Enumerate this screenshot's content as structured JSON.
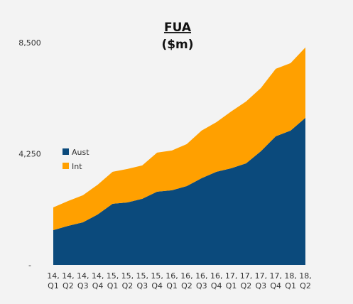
{
  "chart_data": {
    "type": "stacked_area",
    "title": "FUA",
    "subtitle": "($m)",
    "categories": [
      [
        "14,",
        "Q1"
      ],
      [
        "14,",
        "Q2"
      ],
      [
        "14,",
        "Q3"
      ],
      [
        "14,",
        "Q4"
      ],
      [
        "15,",
        "Q1"
      ],
      [
        "15,",
        "Q2"
      ],
      [
        "15,",
        "Q3"
      ],
      [
        "15,",
        "Q4"
      ],
      [
        "16,",
        "Q1"
      ],
      [
        "16,",
        "Q2"
      ],
      [
        "16,",
        "Q3"
      ],
      [
        "16,",
        "Q4"
      ],
      [
        "17,",
        "Q1"
      ],
      [
        "17,",
        "Q2"
      ],
      [
        "17,",
        "Q3"
      ],
      [
        "17,",
        "Q4"
      ],
      [
        "18,",
        "Q1"
      ],
      [
        "18,",
        "Q2"
      ]
    ],
    "series": [
      {
        "name": "Aust",
        "color": "#0b4a7c",
        "values": [
          1330,
          1495,
          1630,
          1930,
          2340,
          2390,
          2530,
          2800,
          2855,
          3015,
          3315,
          3560,
          3695,
          3885,
          4350,
          4920,
          5135,
          5625
        ]
      },
      {
        "name": "Int",
        "color": "#ffa000",
        "values": [
          870,
          950,
          1035,
          1140,
          1220,
          1280,
          1275,
          1495,
          1520,
          1605,
          1820,
          1900,
          2175,
          2365,
          2415,
          2580,
          2580,
          2690
        ]
      }
    ],
    "ylim": [
      0,
      8500
    ],
    "yticks": [
      {
        "value": 0,
        "label": "-"
      },
      {
        "value": 4250,
        "label": "4,250"
      },
      {
        "value": 8500,
        "label": "8,500"
      }
    ],
    "legend": "left"
  }
}
